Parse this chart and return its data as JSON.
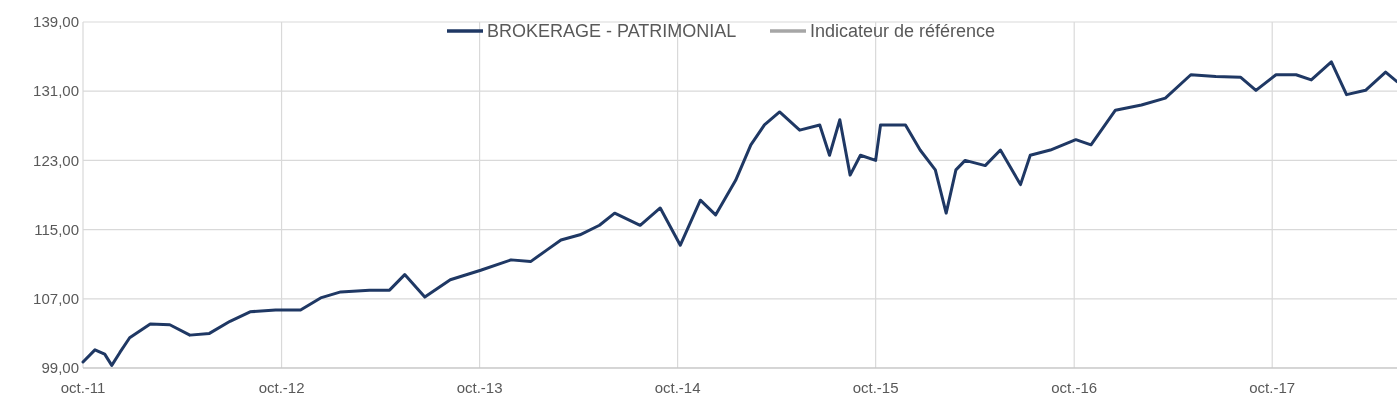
{
  "chart_data": {
    "type": "line",
    "x": [
      "2011-10-01",
      "2011-10-23",
      "2011-11-10",
      "2011-11-23",
      "2011-12-08",
      "2011-12-26",
      "2012-02-02",
      "2012-03-09",
      "2012-04-15",
      "2012-05-21",
      "2012-06-28",
      "2012-08-04",
      "2012-09-20",
      "2012-11-05",
      "2012-12-12",
      "2013-01-18",
      "2013-03-12",
      "2013-04-18",
      "2013-05-16",
      "2013-06-22",
      "2013-08-08",
      "2013-10-03",
      "2013-11-28",
      "2014-01-03",
      "2014-02-01",
      "2014-02-28",
      "2014-04-04",
      "2014-05-10",
      "2014-06-07",
      "2014-07-24",
      "2014-08-30",
      "2014-10-06",
      "2014-11-12",
      "2014-12-10",
      "2015-01-16",
      "2015-02-13",
      "2015-03-10",
      "2015-04-07",
      "2015-05-14",
      "2015-06-20",
      "2015-07-08",
      "2015-07-27",
      "2015-08-15",
      "2015-09-03",
      "2015-10-01",
      "2015-10-10",
      "2015-11-25",
      "2015-12-22",
      "2016-01-19",
      "2016-02-08",
      "2016-02-26",
      "2016-03-14",
      "2016-04-20",
      "2016-05-18",
      "2016-06-24",
      "2016-07-12",
      "2016-08-18",
      "2016-10-04",
      "2016-11-01",
      "2016-12-16",
      "2017-02-02",
      "2017-03-18",
      "2017-05-04",
      "2017-06-19",
      "2017-08-04",
      "2017-09-01",
      "2017-10-08",
      "2017-11-14",
      "2017-12-12",
      "2018-01-18",
      "2018-02-15",
      "2018-03-22",
      "2018-04-28",
      "2018-05-19"
    ],
    "series": [
      {
        "name": "BROKERAGE - PATRIMONIAL",
        "color": "#1f3864",
        "values": [
          99.7,
          101.1,
          100.6,
          99.3,
          100.8,
          102.5,
          104.1,
          104.0,
          102.8,
          103.0,
          104.4,
          105.5,
          105.7,
          105.7,
          107.1,
          107.8,
          108.0,
          108.0,
          109.8,
          107.2,
          109.2,
          110.3,
          111.5,
          111.3,
          112.6,
          113.8,
          114.4,
          115.5,
          116.9,
          115.5,
          117.5,
          113.2,
          118.4,
          116.7,
          120.7,
          124.8,
          127.1,
          128.6,
          126.5,
          127.1,
          123.6,
          127.7,
          121.3,
          123.6,
          123.0,
          127.1,
          127.1,
          124.2,
          121.9,
          116.9,
          121.9,
          123.0,
          122.4,
          124.2,
          120.2,
          123.6,
          124.2,
          125.4,
          124.8,
          128.8,
          129.4,
          130.2,
          132.9,
          132.7,
          132.6,
          131.1,
          132.9,
          132.9,
          132.3,
          134.4,
          130.6,
          131.1,
          133.2,
          132.1
        ]
      },
      {
        "name": "Indicateur de référence",
        "color": "#a6a6a6",
        "values": [
          null,
          null,
          null,
          null,
          null,
          null,
          null,
          null,
          null,
          null,
          null,
          null,
          null,
          null,
          null,
          null,
          null,
          null,
          null,
          null,
          null,
          null,
          null,
          null,
          null,
          null,
          null,
          null,
          null,
          null,
          null,
          null,
          null,
          null,
          null,
          null,
          null,
          null,
          null,
          null,
          null,
          null,
          null,
          null,
          null,
          null,
          null,
          null,
          null,
          null,
          null,
          null,
          null,
          null,
          null,
          null,
          null,
          null,
          null,
          null,
          null,
          null,
          null,
          null,
          null,
          null,
          null,
          null,
          null,
          null,
          null,
          null,
          null,
          null
        ]
      }
    ],
    "xlim": [
      "2011-10-01",
      "2018-05-19"
    ],
    "xticks": [
      {
        "value": "2011-10-01",
        "label": "oct.-11"
      },
      {
        "value": "2012-10-01",
        "label": "oct.-12"
      },
      {
        "value": "2013-10-01",
        "label": "oct.-13"
      },
      {
        "value": "2014-10-01",
        "label": "oct.-14"
      },
      {
        "value": "2015-10-01",
        "label": "oct.-15"
      },
      {
        "value": "2016-10-01",
        "label": "oct.-16"
      },
      {
        "value": "2017-10-01",
        "label": "oct.-17"
      }
    ],
    "ylim": [
      99,
      139
    ],
    "yticks": [
      {
        "value": 99,
        "label": "99,00"
      },
      {
        "value": 107,
        "label": "107,00"
      },
      {
        "value": 115,
        "label": "115,00"
      },
      {
        "value": 123,
        "label": "123,00"
      },
      {
        "value": 131,
        "label": "131,00"
      },
      {
        "value": 139,
        "label": "139,00"
      }
    ],
    "grid": true,
    "legend": "top",
    "line_style": "solid"
  }
}
